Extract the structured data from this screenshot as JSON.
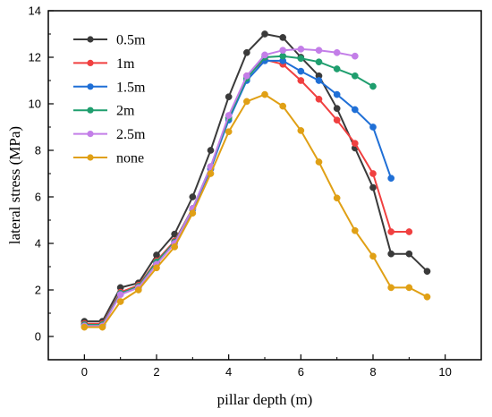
{
  "chart_data": {
    "type": "line",
    "xlabel": "pillar depth (m)",
    "ylabel": "lateral stress (MPa)",
    "xlim": [
      -1,
      11
    ],
    "ylim": [
      -1,
      14
    ],
    "xticks": [
      0,
      2,
      4,
      6,
      8,
      10
    ],
    "yticks": [
      0,
      2,
      4,
      6,
      8,
      10,
      12,
      14
    ],
    "grid": false,
    "legend_position": "top-left",
    "series": [
      {
        "name": "0.5m",
        "color": "#3a3a3a",
        "x": [
          0,
          0.5,
          1,
          1.5,
          2,
          2.5,
          3,
          3.5,
          4,
          4.5,
          5,
          5.5,
          6,
          6.5,
          7,
          7.5,
          8,
          8.5,
          9,
          9.5
        ],
        "y": [
          0.65,
          0.65,
          2.1,
          2.3,
          3.5,
          4.4,
          6.0,
          8.0,
          10.3,
          12.2,
          13.0,
          12.85,
          12.0,
          11.2,
          9.8,
          8.1,
          6.4,
          3.55,
          3.55,
          2.8
        ]
      },
      {
        "name": "1m",
        "color": "#f04040",
        "x": [
          0,
          0.5,
          1,
          1.5,
          2,
          2.5,
          3,
          3.5,
          4,
          4.5,
          5,
          5.5,
          6,
          6.5,
          7,
          7.5,
          8,
          8.5,
          9
        ],
        "y": [
          0.55,
          0.55,
          1.9,
          2.2,
          3.25,
          4.1,
          5.5,
          7.2,
          9.4,
          11.2,
          11.9,
          11.7,
          11.0,
          10.2,
          9.3,
          8.3,
          7.0,
          4.5,
          4.5
        ]
      },
      {
        "name": "1.5m",
        "color": "#1f6fd6",
        "x": [
          0,
          0.5,
          1,
          1.5,
          2,
          2.5,
          3,
          3.5,
          4,
          4.5,
          5,
          5.5,
          6,
          6.5,
          7,
          7.5,
          8,
          8.5
        ],
        "y": [
          0.5,
          0.5,
          1.85,
          2.1,
          3.15,
          4.0,
          5.45,
          7.2,
          9.3,
          11.0,
          11.85,
          11.85,
          11.4,
          11.0,
          10.4,
          9.75,
          9.0,
          6.8
        ]
      },
      {
        "name": "2m",
        "color": "#1f9e6e",
        "x": [
          0,
          0.5,
          1,
          1.5,
          2,
          2.5,
          3,
          3.5,
          4,
          4.5,
          5,
          5.5,
          6,
          6.5,
          7,
          7.5,
          8
        ],
        "y": [
          0.5,
          0.5,
          1.85,
          2.15,
          3.2,
          4.05,
          5.5,
          7.3,
          9.4,
          11.1,
          12.0,
          12.05,
          11.95,
          11.8,
          11.5,
          11.2,
          10.75
        ]
      },
      {
        "name": "2.5m",
        "color": "#c37ee8",
        "x": [
          0,
          0.5,
          1,
          1.5,
          2,
          2.5,
          3,
          3.5,
          4,
          4.5,
          5,
          5.5,
          6,
          6.5,
          7,
          7.5
        ],
        "y": [
          0.45,
          0.45,
          1.8,
          2.1,
          3.1,
          4.0,
          5.5,
          7.3,
          9.5,
          11.2,
          12.1,
          12.3,
          12.35,
          12.3,
          12.2,
          12.05
        ]
      },
      {
        "name": "none",
        "color": "#e0a015",
        "x": [
          0,
          0.5,
          1,
          1.5,
          2,
          2.5,
          3,
          3.5,
          4,
          4.5,
          5,
          5.5,
          6,
          6.5,
          7,
          7.5,
          8,
          8.5,
          9,
          9.5
        ],
        "y": [
          0.4,
          0.4,
          1.5,
          2.0,
          2.95,
          3.85,
          5.3,
          7.0,
          8.8,
          10.1,
          10.4,
          9.9,
          8.85,
          7.5,
          5.95,
          4.55,
          3.45,
          2.1,
          2.1,
          1.7
        ]
      }
    ]
  }
}
